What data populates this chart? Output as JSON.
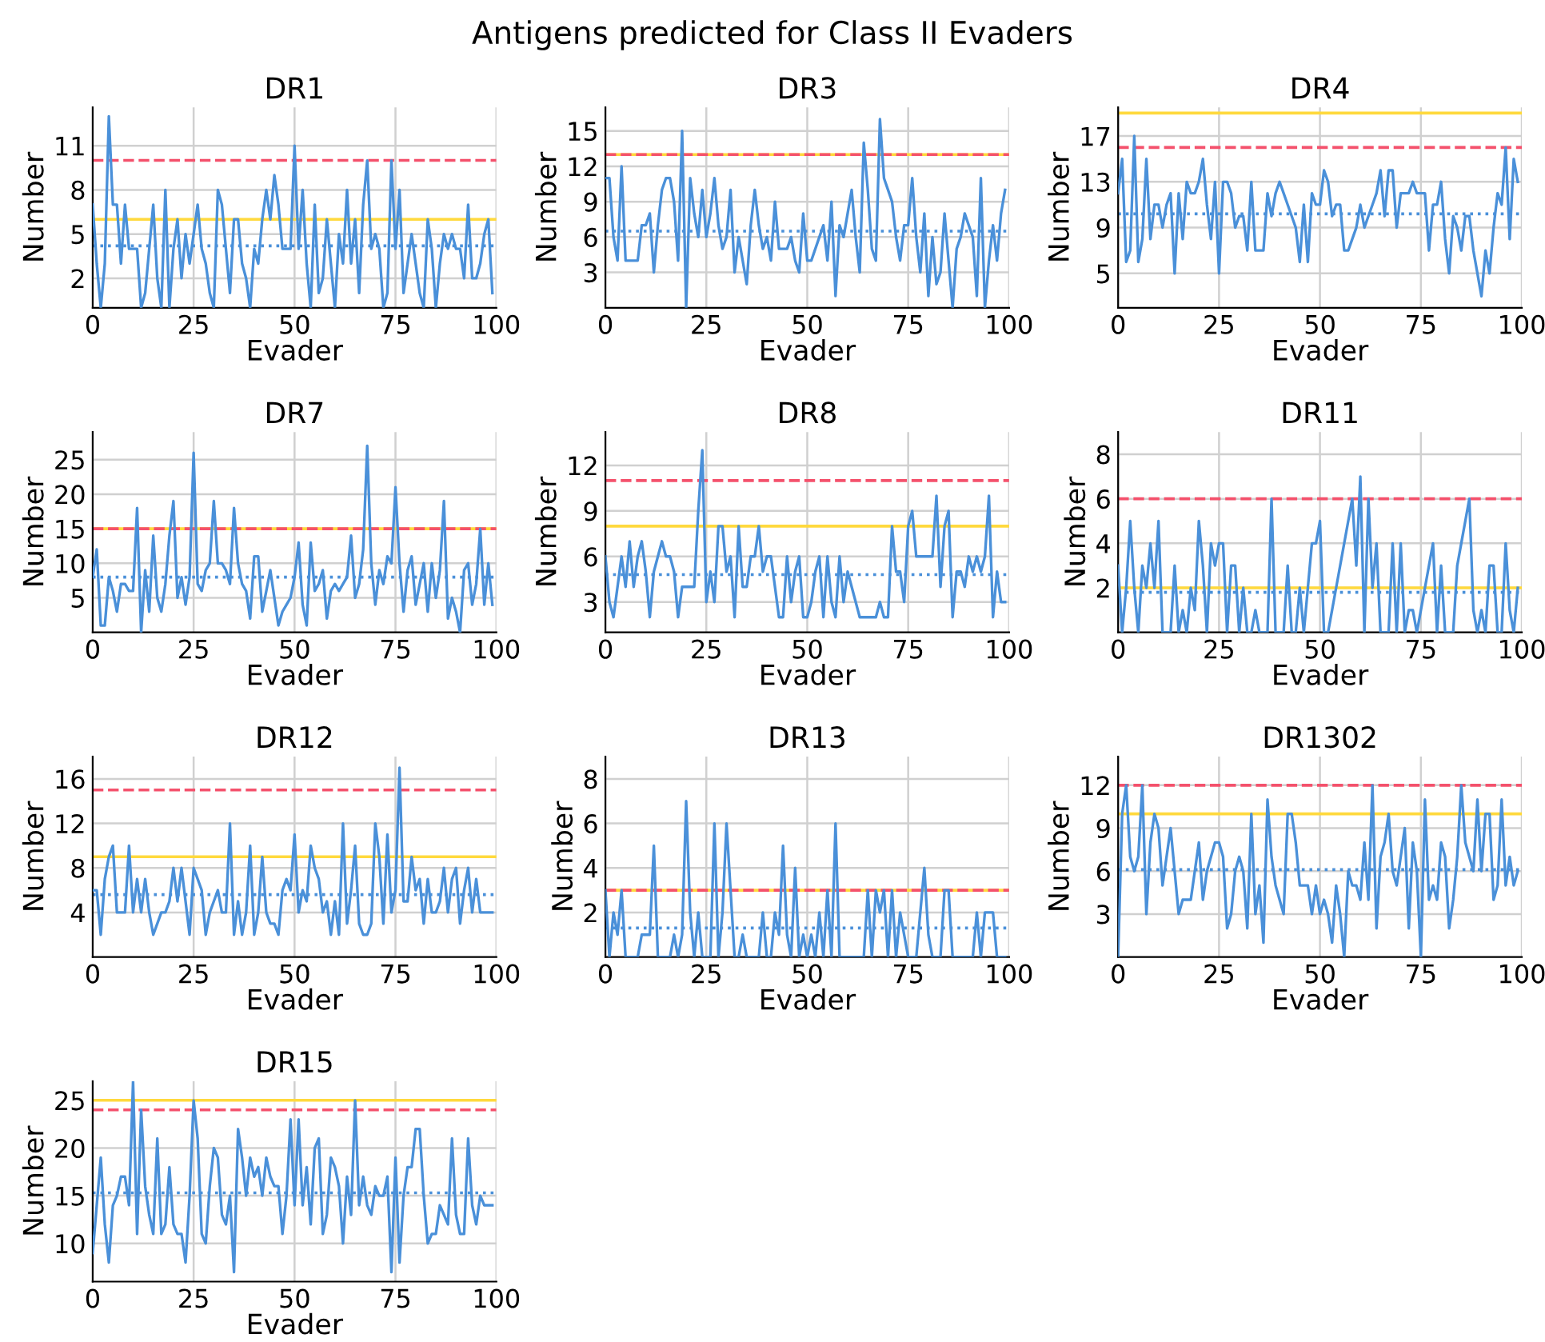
{
  "chart_data": [
    {
      "type": "line",
      "title": "DR1",
      "x": [
        0,
        1,
        2,
        3,
        4,
        5,
        6,
        7,
        8,
        9,
        10,
        11,
        12,
        13,
        14,
        15,
        16,
        17,
        18,
        19,
        20,
        21,
        22,
        23,
        24,
        25,
        26,
        27,
        28,
        29,
        30,
        31,
        32,
        33,
        34,
        35,
        36,
        37,
        38,
        39,
        40,
        41,
        42,
        43,
        44,
        45,
        46,
        47,
        48,
        49,
        50,
        51,
        52,
        53,
        54,
        55,
        56,
        57,
        58,
        59,
        60,
        61,
        62,
        63,
        64,
        65,
        66,
        67,
        68,
        69,
        70,
        71,
        72,
        73,
        74,
        75,
        76,
        77,
        78,
        79,
        80,
        81,
        82,
        83,
        84,
        85,
        86,
        87,
        88,
        89,
        90,
        91,
        92,
        93,
        94,
        95,
        96,
        97,
        98,
        99
      ],
      "xlabel": "Evader",
      "ylabel": "Number",
      "annotations": [
        "Antigens predicted for Class II Evaders"
      ],
      "xlim": [
        0,
        100
      ],
      "xticks": [
        0,
        25,
        50,
        75,
        100
      ],
      "ylim": [
        0,
        13.6
      ],
      "yticks": [
        2,
        5,
        8,
        11
      ],
      "grid": true,
      "series": [
        {
          "color": "#4a90d9",
          "values": [
            7,
            3,
            0,
            3,
            13,
            7,
            7,
            3,
            7,
            4,
            4,
            4,
            0,
            1,
            4,
            7,
            2,
            0,
            8,
            0,
            4,
            6,
            2,
            5,
            3,
            5,
            7,
            4,
            3,
            1,
            0,
            8,
            7,
            4,
            1,
            6,
            6,
            3,
            2,
            0,
            4,
            3,
            6,
            8,
            6,
            9,
            7,
            4,
            4,
            4,
            11,
            4,
            8,
            3,
            0,
            7,
            1,
            2,
            6,
            3,
            0,
            5,
            3,
            8,
            3,
            6,
            1,
            7,
            10,
            4,
            5,
            4,
            0,
            1,
            10,
            4,
            8,
            1,
            3,
            5,
            3,
            1,
            0,
            6,
            4,
            0,
            3,
            5,
            4,
            5,
            4,
            4,
            2,
            7,
            2,
            2,
            3,
            5,
            6,
            1
          ]
        }
      ],
      "ref_lines": [
        {
          "axis": "y",
          "value": 6,
          "color": "#ffd93d",
          "line_style": "solid"
        },
        {
          "axis": "y",
          "value": 10,
          "color": "#f4516c",
          "line_style": "dashed"
        },
        {
          "axis": "y",
          "value": 4.2,
          "color": "#4a90d9",
          "line_style": "dotted"
        }
      ]
    },
    {
      "type": "line",
      "title": "DR3",
      "x": [
        0,
        1,
        2,
        3,
        4,
        5,
        6,
        7,
        8,
        9,
        10,
        11,
        12,
        13,
        14,
        15,
        16,
        17,
        18,
        19,
        20,
        21,
        22,
        23,
        24,
        25,
        26,
        27,
        28,
        29,
        30,
        31,
        32,
        33,
        34,
        35,
        36,
        37,
        38,
        39,
        40,
        41,
        42,
        43,
        44,
        45,
        46,
        47,
        48,
        49,
        50,
        51,
        52,
        53,
        54,
        55,
        56,
        57,
        58,
        59,
        60,
        61,
        62,
        63,
        64,
        65,
        66,
        67,
        68,
        69,
        70,
        71,
        72,
        73,
        74,
        75,
        76,
        77,
        78,
        79,
        80,
        81,
        82,
        83,
        84,
        85,
        86,
        87,
        88,
        89,
        90,
        91,
        92,
        93,
        94,
        95,
        96,
        97,
        98,
        99
      ],
      "xlabel": "Evader",
      "ylabel": "Number",
      "xlim": [
        0,
        100
      ],
      "xticks": [
        0,
        25,
        50,
        75,
        100
      ],
      "ylim": [
        0,
        17
      ],
      "yticks": [
        3,
        6,
        9,
        12,
        15
      ],
      "grid": true,
      "series": [
        {
          "color": "#4a90d9",
          "values": [
            11,
            11,
            6,
            4,
            12,
            4,
            4,
            4,
            4,
            7,
            7,
            8,
            3,
            7,
            10,
            11,
            11,
            9,
            4,
            15,
            0,
            11,
            8,
            6,
            10,
            6,
            8,
            11,
            7,
            5,
            6,
            10,
            3,
            6,
            4,
            2,
            7,
            10,
            7,
            5,
            6,
            4,
            9,
            5,
            5,
            5,
            6,
            4,
            3,
            8,
            4,
            4,
            5,
            6,
            7,
            4,
            9,
            1,
            7,
            6,
            8,
            10,
            6,
            3,
            14,
            10,
            5,
            4,
            16,
            11,
            10,
            9,
            6,
            4,
            7,
            7,
            11,
            6,
            3,
            8,
            1,
            6,
            2,
            3,
            8,
            4,
            0,
            5,
            6,
            8,
            7,
            6,
            1,
            11,
            0,
            4,
            7,
            4,
            8,
            10
          ]
        }
      ],
      "ref_lines": [
        {
          "axis": "y",
          "value": 13,
          "color": "#ffd93d",
          "line_style": "solid"
        },
        {
          "axis": "y",
          "value": 13,
          "color": "#f4516c",
          "line_style": "dashed"
        },
        {
          "axis": "y",
          "value": 6.5,
          "color": "#4a90d9",
          "line_style": "dotted"
        }
      ]
    },
    {
      "type": "line",
      "title": "DR4",
      "x": [
        0,
        1,
        2,
        3,
        4,
        5,
        6,
        7,
        8,
        9,
        10,
        11,
        12,
        13,
        14,
        15,
        16,
        17,
        18,
        19,
        20,
        21,
        22,
        23,
        24,
        25,
        26,
        27,
        28,
        29,
        30,
        31,
        32,
        33,
        34,
        35,
        36,
        37,
        38,
        39,
        40,
        41,
        42,
        43,
        44,
        45,
        46,
        47,
        48,
        49,
        50,
        51,
        52,
        53,
        54,
        55,
        56,
        57,
        58,
        59,
        60,
        61,
        62,
        63,
        64,
        65,
        66,
        67,
        68,
        69,
        70,
        71,
        72,
        73,
        74,
        75,
        76,
        77,
        78,
        79,
        80,
        81,
        82,
        83,
        84,
        85,
        86,
        87,
        88,
        89,
        90,
        91,
        92,
        93,
        94,
        95,
        96,
        97,
        98,
        99
      ],
      "xlabel": "Evader",
      "ylabel": "Number",
      "xlim": [
        0,
        100
      ],
      "xticks": [
        0,
        25,
        50,
        75,
        100
      ],
      "ylim": [
        2,
        19.5
      ],
      "yticks": [
        5,
        9,
        13,
        17
      ],
      "grid": true,
      "series": [
        {
          "color": "#4a90d9",
          "values": [
            12,
            15,
            6,
            7,
            17,
            6,
            8,
            15,
            8,
            11,
            11,
            9,
            11,
            12,
            5,
            12,
            8,
            13,
            12,
            12,
            13,
            15,
            11,
            8,
            13,
            5,
            13,
            13,
            12,
            9,
            10,
            10,
            7,
            13,
            7,
            7,
            7,
            12,
            10,
            12,
            13,
            12,
            11,
            10,
            9,
            6,
            11,
            6,
            12,
            11,
            11,
            14,
            13,
            10,
            11,
            11,
            7,
            7,
            8,
            9,
            11,
            9,
            10,
            11,
            12,
            14,
            10,
            14,
            14,
            9,
            12,
            12,
            12,
            13,
            12,
            12,
            12,
            7,
            11,
            11,
            13,
            8,
            5,
            10,
            9,
            7,
            10,
            10,
            7,
            5,
            3,
            7,
            5,
            9,
            12,
            11,
            16,
            8,
            15,
            13
          ]
        }
      ],
      "ref_lines": [
        {
          "axis": "y",
          "value": 19,
          "color": "#ffd93d",
          "line_style": "solid"
        },
        {
          "axis": "y",
          "value": 16,
          "color": "#f4516c",
          "line_style": "dashed"
        },
        {
          "axis": "y",
          "value": 10.2,
          "color": "#4a90d9",
          "line_style": "dotted"
        }
      ]
    },
    {
      "type": "line",
      "title": "DR7",
      "x": [
        0,
        1,
        2,
        3,
        4,
        5,
        6,
        7,
        8,
        9,
        10,
        11,
        12,
        13,
        14,
        15,
        16,
        17,
        18,
        19,
        20,
        21,
        22,
        23,
        24,
        25,
        26,
        27,
        28,
        29,
        30,
        31,
        32,
        33,
        34,
        35,
        36,
        37,
        38,
        39,
        40,
        41,
        42,
        43,
        44,
        45,
        46,
        47,
        48,
        49,
        50,
        51,
        52,
        53,
        54,
        55,
        56,
        57,
        58,
        59,
        60,
        61,
        62,
        63,
        64,
        65,
        66,
        67,
        68,
        69,
        70,
        71,
        72,
        73,
        74,
        75,
        76,
        77,
        78,
        79,
        80,
        81,
        82,
        83,
        84,
        85,
        86,
        87,
        88,
        89,
        90,
        91,
        92,
        93,
        94,
        95,
        96,
        97,
        98,
        99
      ],
      "xlabel": "Evader",
      "ylabel": "Number",
      "xlim": [
        0,
        100
      ],
      "xticks": [
        0,
        25,
        50,
        75,
        100
      ],
      "ylim": [
        0,
        29
      ],
      "yticks": [
        5,
        10,
        15,
        20,
        25
      ],
      "grid": true,
      "series": [
        {
          "color": "#4a90d9",
          "values": [
            8,
            12,
            1,
            1,
            8,
            6,
            3,
            7,
            7,
            6,
            6,
            18,
            0,
            9,
            3,
            14,
            5,
            3,
            7,
            14,
            19,
            5,
            8,
            4,
            8,
            26,
            7,
            6,
            9,
            10,
            19,
            10,
            10,
            9,
            7,
            18,
            10,
            7,
            6,
            2,
            11,
            11,
            3,
            6,
            9,
            5,
            1,
            3,
            4,
            5,
            8,
            13,
            4,
            1,
            13,
            6,
            7,
            9,
            2,
            6,
            7,
            6,
            7,
            8,
            14,
            5,
            7,
            12,
            27,
            10,
            4,
            9,
            7,
            11,
            10,
            21,
            10,
            3,
            9,
            11,
            4,
            7,
            10,
            3,
            10,
            5,
            9,
            19,
            2,
            5,
            3,
            0,
            9,
            10,
            4,
            7,
            15,
            4,
            10,
            4
          ]
        }
      ],
      "ref_lines": [
        {
          "axis": "y",
          "value": 15,
          "color": "#ffd93d",
          "line_style": "solid"
        },
        {
          "axis": "y",
          "value": 15,
          "color": "#f4516c",
          "line_style": "dashed"
        },
        {
          "axis": "y",
          "value": 8,
          "color": "#4a90d9",
          "line_style": "dotted"
        }
      ]
    },
    {
      "type": "line",
      "title": "DR8",
      "x": [
        0,
        1,
        2,
        3,
        4,
        5,
        6,
        7,
        8,
        9,
        10,
        11,
        12,
        13,
        14,
        15,
        16,
        17,
        18,
        19,
        20,
        21,
        22,
        23,
        24,
        25,
        26,
        27,
        28,
        29,
        30,
        31,
        32,
        33,
        34,
        35,
        36,
        37,
        38,
        39,
        40,
        41,
        42,
        43,
        44,
        45,
        46,
        47,
        48,
        49,
        50,
        51,
        52,
        53,
        54,
        55,
        56,
        57,
        58,
        59,
        60,
        61,
        62,
        63,
        64,
        65,
        66,
        67,
        68,
        69,
        70,
        71,
        72,
        73,
        74,
        75,
        76,
        77,
        78,
        79,
        80,
        81,
        82,
        83,
        84,
        85,
        86,
        87,
        88,
        89,
        90,
        91,
        92,
        93,
        94,
        95,
        96,
        97,
        98,
        99
      ],
      "xlabel": "Evader",
      "ylabel": "Number",
      "xlim": [
        0,
        100
      ],
      "xticks": [
        0,
        25,
        50,
        75,
        100
      ],
      "ylim": [
        1,
        14.2
      ],
      "yticks": [
        3,
        6,
        9,
        12
      ],
      "grid": true,
      "series": [
        {
          "color": "#4a90d9",
          "values": [
            6,
            3,
            2,
            4,
            6,
            4,
            7,
            4,
            6,
            7,
            5,
            2,
            5,
            6,
            7,
            6,
            6,
            5,
            2,
            4,
            4,
            4,
            4,
            9,
            13,
            3,
            5,
            3,
            8,
            8,
            5,
            6,
            2,
            8,
            4,
            4,
            6,
            6,
            8,
            5,
            6,
            6,
            4,
            2,
            2,
            6,
            3,
            5,
            6,
            2,
            2,
            3,
            5,
            6,
            2,
            6,
            3,
            2,
            6,
            3,
            5,
            4,
            3,
            2,
            2,
            2,
            2,
            2,
            3,
            2,
            2,
            8,
            5,
            5,
            3,
            8,
            9,
            6,
            6,
            6,
            6,
            6,
            10,
            4,
            8,
            9,
            2,
            5,
            5,
            4,
            6,
            5,
            6,
            5,
            6,
            10,
            2,
            5,
            3,
            3
          ]
        }
      ],
      "ref_lines": [
        {
          "axis": "y",
          "value": 8,
          "color": "#ffd93d",
          "line_style": "solid"
        },
        {
          "axis": "y",
          "value": 11,
          "color": "#f4516c",
          "line_style": "dashed"
        },
        {
          "axis": "y",
          "value": 4.8,
          "color": "#4a90d9",
          "line_style": "dotted"
        }
      ]
    },
    {
      "type": "line",
      "title": "DR11",
      "x": [
        0,
        1,
        2,
        3,
        4,
        5,
        6,
        7,
        8,
        9,
        10,
        11,
        12,
        13,
        14,
        15,
        16,
        17,
        18,
        19,
        20,
        21,
        22,
        23,
        24,
        25,
        26,
        27,
        28,
        29,
        30,
        31,
        32,
        33,
        34,
        35,
        36,
        37,
        38,
        39,
        40,
        41,
        42,
        43,
        44,
        45,
        46,
        47,
        48,
        49,
        50,
        51,
        52,
        53,
        54,
        55,
        56,
        57,
        58,
        59,
        60,
        61,
        62,
        63,
        64,
        65,
        66,
        67,
        68,
        69,
        70,
        71,
        72,
        73,
        74,
        75,
        76,
        77,
        78,
        79,
        80,
        81,
        82,
        83,
        84,
        85,
        86,
        87,
        88,
        89,
        90,
        91,
        92,
        93,
        94,
        95,
        96,
        97,
        98,
        99
      ],
      "xlabel": "Evader",
      "ylabel": "Number",
      "xlim": [
        0,
        100
      ],
      "xticks": [
        0,
        25,
        50,
        75,
        100
      ],
      "ylim": [
        0,
        9
      ],
      "yticks": [
        2,
        4,
        6,
        8
      ],
      "grid": true,
      "series": [
        {
          "color": "#4a90d9",
          "values": [
            3,
            0,
            2,
            5,
            2,
            0,
            3,
            2,
            4,
            2,
            5,
            0,
            0,
            0,
            3,
            0,
            1,
            0,
            2,
            1,
            5,
            3,
            0,
            4,
            3,
            4,
            4,
            0,
            3,
            3,
            0,
            2,
            0,
            0,
            1,
            0,
            0,
            0,
            6,
            0,
            0,
            0,
            3,
            0,
            0,
            2,
            0,
            2,
            4,
            4,
            5,
            0,
            0,
            1,
            2,
            3,
            4,
            5,
            6,
            3,
            7,
            0,
            6,
            2,
            4,
            0,
            0,
            0,
            4,
            0,
            4,
            0,
            1,
            1,
            0,
            1,
            2,
            3,
            4,
            0,
            3,
            0,
            0,
            0,
            3,
            4,
            5,
            6,
            1,
            0,
            1,
            0,
            3,
            3,
            0,
            0,
            4,
            1,
            0,
            2
          ]
        }
      ],
      "ref_lines": [
        {
          "axis": "y",
          "value": 2,
          "color": "#ffd93d",
          "line_style": "solid"
        },
        {
          "axis": "y",
          "value": 6,
          "color": "#f4516c",
          "line_style": "dashed"
        },
        {
          "axis": "y",
          "value": 1.8,
          "color": "#4a90d9",
          "line_style": "dotted"
        }
      ]
    },
    {
      "type": "line",
      "title": "DR12",
      "x": [
        0,
        1,
        2,
        3,
        4,
        5,
        6,
        7,
        8,
        9,
        10,
        11,
        12,
        13,
        14,
        15,
        16,
        17,
        18,
        19,
        20,
        21,
        22,
        23,
        24,
        25,
        26,
        27,
        28,
        29,
        30,
        31,
        32,
        33,
        34,
        35,
        36,
        37,
        38,
        39,
        40,
        41,
        42,
        43,
        44,
        45,
        46,
        47,
        48,
        49,
        50,
        51,
        52,
        53,
        54,
        55,
        56,
        57,
        58,
        59,
        60,
        61,
        62,
        63,
        64,
        65,
        66,
        67,
        68,
        69,
        70,
        71,
        72,
        73,
        74,
        75,
        76,
        77,
        78,
        79,
        80,
        81,
        82,
        83,
        84,
        85,
        86,
        87,
        88,
        89,
        90,
        91,
        92,
        93,
        94,
        95,
        96,
        97,
        98,
        99
      ],
      "xlabel": "Evader",
      "ylabel": "Number",
      "xlim": [
        0,
        100
      ],
      "xticks": [
        0,
        25,
        50,
        75,
        100
      ],
      "ylim": [
        0,
        18
      ],
      "yticks": [
        4,
        8,
        12,
        16
      ],
      "grid": true,
      "series": [
        {
          "color": "#4a90d9",
          "values": [
            6,
            6,
            2,
            7,
            9,
            10,
            4,
            4,
            4,
            10,
            4,
            7,
            4,
            7,
            4,
            2,
            3,
            4,
            4,
            5,
            8,
            5,
            8,
            5,
            2,
            8,
            7,
            6,
            2,
            4,
            5,
            6,
            4,
            4,
            12,
            2,
            5,
            2,
            4,
            10,
            2,
            4,
            9,
            4,
            3,
            3,
            2,
            6,
            7,
            6,
            11,
            4,
            6,
            5,
            10,
            8,
            7,
            4,
            5,
            2,
            5,
            2,
            12,
            3,
            6,
            10,
            3,
            2,
            2,
            3,
            12,
            9,
            3,
            11,
            4,
            6,
            17,
            5,
            5,
            9,
            6,
            7,
            3,
            7,
            4,
            4,
            5,
            8,
            4,
            7,
            8,
            3,
            6,
            8,
            4,
            7,
            4,
            4,
            4,
            4
          ]
        }
      ],
      "ref_lines": [
        {
          "axis": "y",
          "value": 9,
          "color": "#ffd93d",
          "line_style": "solid"
        },
        {
          "axis": "y",
          "value": 15,
          "color": "#f4516c",
          "line_style": "dashed"
        },
        {
          "axis": "y",
          "value": 5.6,
          "color": "#4a90d9",
          "line_style": "dotted"
        }
      ]
    },
    {
      "type": "line",
      "title": "DR13",
      "x": [
        0,
        1,
        2,
        3,
        4,
        5,
        6,
        7,
        8,
        9,
        10,
        11,
        12,
        13,
        14,
        15,
        16,
        17,
        18,
        19,
        20,
        21,
        22,
        23,
        24,
        25,
        26,
        27,
        28,
        29,
        30,
        31,
        32,
        33,
        34,
        35,
        36,
        37,
        38,
        39,
        40,
        41,
        42,
        43,
        44,
        45,
        46,
        47,
        48,
        49,
        50,
        51,
        52,
        53,
        54,
        55,
        56,
        57,
        58,
        59,
        60,
        61,
        62,
        63,
        64,
        65,
        66,
        67,
        68,
        69,
        70,
        71,
        72,
        73,
        74,
        75,
        76,
        77,
        78,
        79,
        80,
        81,
        82,
        83,
        84,
        85,
        86,
        87,
        88,
        89,
        90,
        91,
        92,
        93,
        94,
        95,
        96,
        97,
        98,
        99
      ],
      "xlabel": "Evader",
      "ylabel": "Number",
      "xlim": [
        0,
        100
      ],
      "xticks": [
        0,
        25,
        50,
        75,
        100
      ],
      "ylim": [
        0,
        9
      ],
      "yticks": [
        2,
        4,
        6,
        8
      ],
      "grid": true,
      "series": [
        {
          "color": "#4a90d9",
          "values": [
            3,
            0,
            2,
            1,
            3,
            0,
            0,
            0,
            0,
            1,
            1,
            1,
            5,
            0,
            0,
            0,
            0,
            1,
            0,
            1,
            7,
            2,
            0,
            2,
            0,
            0,
            0,
            6,
            0,
            2,
            6,
            3,
            0,
            0,
            1,
            0,
            0,
            0,
            0,
            2,
            0,
            0,
            2,
            1,
            5,
            1,
            0,
            4,
            0,
            1,
            0,
            1,
            0,
            2,
            0,
            3,
            0,
            6,
            0,
            0,
            0,
            0,
            0,
            0,
            0,
            3,
            0,
            3,
            2,
            3,
            0,
            3,
            0,
            2,
            1,
            0,
            0,
            0,
            2,
            4,
            1,
            0,
            0,
            0,
            3,
            3,
            0,
            0,
            0,
            0,
            0,
            0,
            2,
            0,
            2,
            2,
            2,
            0,
            0,
            0
          ]
        }
      ],
      "ref_lines": [
        {
          "axis": "y",
          "value": 3,
          "color": "#ffd93d",
          "line_style": "solid"
        },
        {
          "axis": "y",
          "value": 3,
          "color": "#f4516c",
          "line_style": "dashed"
        },
        {
          "axis": "y",
          "value": 1.3,
          "color": "#4a90d9",
          "line_style": "dotted"
        }
      ]
    },
    {
      "type": "line",
      "title": "DR1302",
      "x": [
        0,
        1,
        2,
        3,
        4,
        5,
        6,
        7,
        8,
        9,
        10,
        11,
        12,
        13,
        14,
        15,
        16,
        17,
        18,
        19,
        20,
        21,
        22,
        23,
        24,
        25,
        26,
        27,
        28,
        29,
        30,
        31,
        32,
        33,
        34,
        35,
        36,
        37,
        38,
        39,
        40,
        41,
        42,
        43,
        44,
        45,
        46,
        47,
        48,
        49,
        50,
        51,
        52,
        53,
        54,
        55,
        56,
        57,
        58,
        59,
        60,
        61,
        62,
        63,
        64,
        65,
        66,
        67,
        68,
        69,
        70,
        71,
        72,
        73,
        74,
        75,
        76,
        77,
        78,
        79,
        80,
        81,
        82,
        83,
        84,
        85,
        86,
        87,
        88,
        89,
        90,
        91,
        92,
        93,
        94,
        95,
        96,
        97,
        98,
        99
      ],
      "xlabel": "Evader",
      "ylabel": "Number",
      "xlim": [
        0,
        100
      ],
      "xticks": [
        0,
        25,
        50,
        75,
        100
      ],
      "ylim": [
        0,
        14
      ],
      "yticks": [
        3,
        6,
        9,
        12
      ],
      "grid": true,
      "series": [
        {
          "color": "#4a90d9",
          "values": [
            0,
            10,
            12,
            7,
            6,
            7,
            12,
            3,
            8,
            10,
            9,
            5,
            7,
            9,
            6,
            3,
            4,
            4,
            4,
            6,
            8,
            4,
            6,
            7,
            8,
            8,
            7,
            2,
            3,
            6,
            7,
            6,
            2,
            10,
            3,
            5,
            1,
            11,
            7,
            5,
            4,
            3,
            10,
            10,
            8,
            5,
            5,
            5,
            3,
            5,
            3,
            4,
            3,
            1,
            5,
            3,
            0,
            6,
            5,
            5,
            4,
            8,
            4,
            12,
            2,
            7,
            8,
            10,
            6,
            5,
            7,
            9,
            2,
            8,
            6,
            0,
            11,
            4,
            5,
            4,
            8,
            7,
            2,
            4,
            7,
            12,
            8,
            7,
            6,
            11,
            6,
            10,
            10,
            4,
            5,
            11,
            5,
            7,
            5,
            6
          ]
        }
      ],
      "ref_lines": [
        {
          "axis": "y",
          "value": 10,
          "color": "#ffd93d",
          "line_style": "solid"
        },
        {
          "axis": "y",
          "value": 12,
          "color": "#f4516c",
          "line_style": "dashed"
        },
        {
          "axis": "y",
          "value": 6.1,
          "color": "#4a90d9",
          "line_style": "dotted"
        }
      ]
    },
    {
      "type": "line",
      "title": "DR15",
      "x": [
        0,
        1,
        2,
        3,
        4,
        5,
        6,
        7,
        8,
        9,
        10,
        11,
        12,
        13,
        14,
        15,
        16,
        17,
        18,
        19,
        20,
        21,
        22,
        23,
        24,
        25,
        26,
        27,
        28,
        29,
        30,
        31,
        32,
        33,
        34,
        35,
        36,
        37,
        38,
        39,
        40,
        41,
        42,
        43,
        44,
        45,
        46,
        47,
        48,
        49,
        50,
        51,
        52,
        53,
        54,
        55,
        56,
        57,
        58,
        59,
        60,
        61,
        62,
        63,
        64,
        65,
        66,
        67,
        68,
        69,
        70,
        71,
        72,
        73,
        74,
        75,
        76,
        77,
        78,
        79,
        80,
        81,
        82,
        83,
        84,
        85,
        86,
        87,
        88,
        89,
        90,
        91,
        92,
        93,
        94,
        95,
        96,
        97,
        98,
        99
      ],
      "xlabel": "Evader",
      "ylabel": "Number",
      "xlim": [
        0,
        100
      ],
      "xticks": [
        0,
        25,
        50,
        75,
        100
      ],
      "ylim": [
        6,
        27
      ],
      "yticks": [
        10,
        15,
        20,
        25
      ],
      "grid": true,
      "series": [
        {
          "color": "#4a90d9",
          "values": [
            9,
            14,
            19,
            12,
            8,
            14,
            15,
            17,
            17,
            14,
            27,
            11,
            24,
            16,
            13,
            11,
            21,
            11,
            12,
            18,
            12,
            11,
            11,
            8,
            15,
            25,
            21,
            11,
            10,
            16,
            20,
            19,
            13,
            12,
            15,
            7,
            22,
            19,
            15,
            19,
            17,
            18,
            15,
            19,
            17,
            16,
            16,
            11,
            15,
            23,
            14,
            23,
            14,
            18,
            12,
            20,
            21,
            11,
            13,
            19,
            18,
            16,
            10,
            17,
            13,
            25,
            14,
            17,
            14,
            13,
            16,
            15,
            15,
            17,
            7,
            19,
            8,
            15,
            18,
            18,
            22,
            22,
            15,
            10,
            11,
            11,
            14,
            13,
            12,
            21,
            13,
            11,
            11,
            21,
            14,
            12,
            15,
            14,
            14,
            14
          ]
        }
      ],
      "ref_lines": [
        {
          "axis": "y",
          "value": 25,
          "color": "#ffd93d",
          "line_style": "solid"
        },
        {
          "axis": "y",
          "value": 24,
          "color": "#f4516c",
          "line_style": "dashed"
        },
        {
          "axis": "y",
          "value": 15.3,
          "color": "#4a90d9",
          "line_style": "dotted"
        }
      ]
    }
  ]
}
